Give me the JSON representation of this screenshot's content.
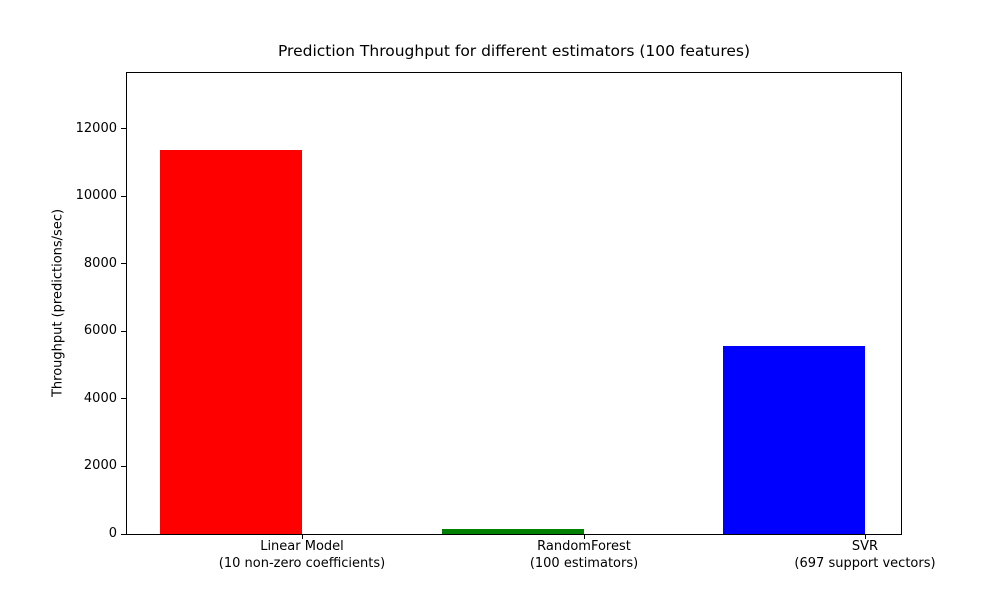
{
  "chart_data": {
    "type": "bar",
    "title": "Prediction Throughput for different estimators (100 features)",
    "xlabel": "",
    "ylabel": "Throughput (predictions/sec)",
    "ylim": [
      0,
      13650
    ],
    "yticks": [
      0,
      2000,
      4000,
      6000,
      8000,
      10000,
      12000
    ],
    "grid": false,
    "legend": "none",
    "categories": [
      {
        "label": "Linear Model",
        "sublabel": "(10 non-zero coefficients)"
      },
      {
        "label": "RandomForest",
        "sublabel": "(100 estimators)"
      },
      {
        "label": "SVR",
        "sublabel": "(697 support vectors)"
      }
    ],
    "series": [
      {
        "name": "throughput",
        "values": [
          11370,
          140,
          5575
        ]
      }
    ],
    "bar_colors": [
      "#ff0000",
      "#008000",
      "#0000ff"
    ],
    "layout": {
      "bar_width_frac": 0.18346,
      "bar_left_fracs": [
        0.04264,
        0.40698,
        0.77003
      ],
      "tick_at_bar_right_edge": true
    }
  }
}
